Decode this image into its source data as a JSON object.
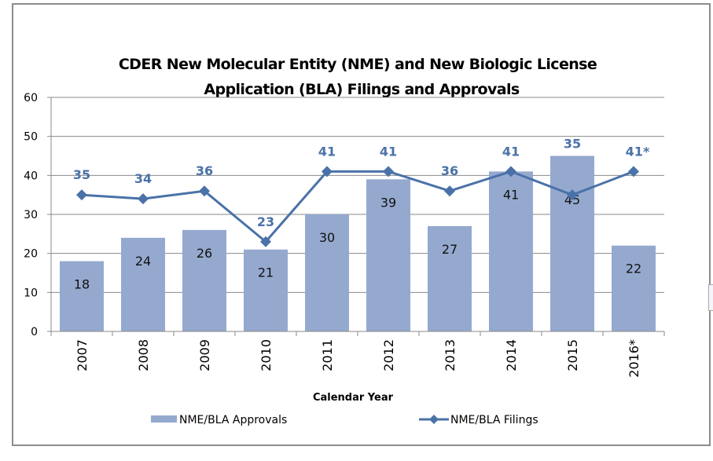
{
  "chart_data": {
    "type": "bar+line",
    "title_lines": [
      "CDER New Molecular Entity (NME) and New Biologic License",
      "Application (BLA) Filings and Approvals"
    ],
    "xlabel": "Calendar Year",
    "ylabel": "",
    "ylim": [
      0,
      60
    ],
    "yticks": [
      0,
      10,
      20,
      30,
      40,
      50,
      60
    ],
    "grid": true,
    "legend_position": "bottom",
    "categories": [
      "2007",
      "2008",
      "2009",
      "2010",
      "2011",
      "2012",
      "2013",
      "2014",
      "2015",
      "2016*"
    ],
    "series": [
      {
        "name": "NME/BLA Approvals",
        "type": "bar",
        "color": "#95a9cf",
        "values": [
          18,
          24,
          26,
          21,
          30,
          39,
          27,
          41,
          45,
          22
        ],
        "data_labels": [
          "18",
          "24",
          "26",
          "21",
          "30",
          "39",
          "27",
          "41",
          "45",
          "22"
        ]
      },
      {
        "name": "NME/BLA Filings",
        "type": "line",
        "marker": "diamond",
        "color": "#4a72a8",
        "values": [
          35,
          34,
          36,
          23,
          41,
          41,
          36,
          41,
          35,
          41
        ],
        "data_labels": [
          "35",
          "34",
          "36",
          "23",
          "41",
          "41",
          "36",
          "41",
          "35",
          "41*"
        ]
      }
    ]
  }
}
